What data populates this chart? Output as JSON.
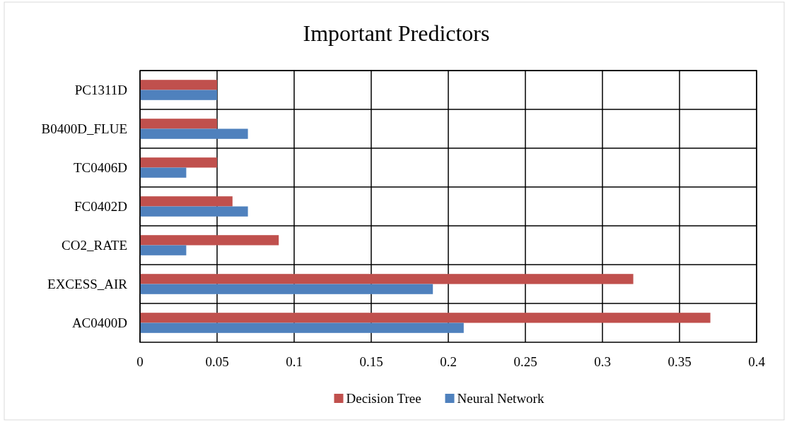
{
  "chart_data": {
    "type": "bar",
    "orientation": "horizontal",
    "title": "Important Predictors",
    "categories": [
      "PC1311D",
      "B0400D_FLUE",
      "TC0406D",
      "FC0402D",
      "CO2_RATE",
      "EXCESS_AIR",
      "AC0400D"
    ],
    "series": [
      {
        "name": "Decision Tree",
        "color": "#c0504d",
        "values": [
          0.05,
          0.05,
          0.05,
          0.06,
          0.09,
          0.32,
          0.37
        ]
      },
      {
        "name": "Neural Network",
        "color": "#4f81bd",
        "values": [
          0.05,
          0.07,
          0.03,
          0.07,
          0.03,
          0.19,
          0.21
        ]
      }
    ],
    "xlim": [
      0,
      0.4
    ],
    "xticks": [
      0,
      0.05,
      0.1,
      0.15,
      0.2,
      0.25,
      0.3,
      0.35,
      0.4
    ],
    "grid": true,
    "legend": "bottom"
  }
}
